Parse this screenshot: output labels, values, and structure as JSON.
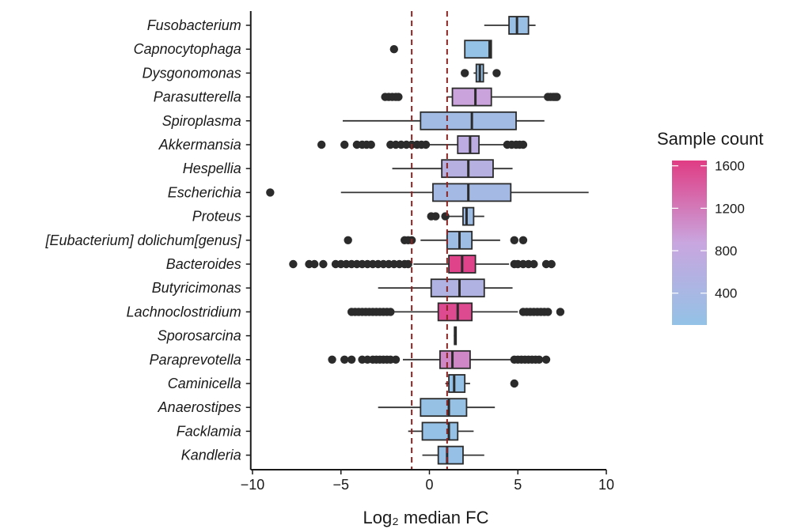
{
  "chart_data": {
    "type": "boxplot",
    "orientation": "horizontal",
    "title": "",
    "xlabel": "Log₂ median FC",
    "ylabel": "",
    "xlim": [
      -10.1,
      10
    ],
    "x_ticks": [
      -10,
      -5,
      0,
      5,
      10
    ],
    "x_tick_labels": [
      "−10",
      "−5",
      "0",
      "5",
      "10"
    ],
    "reference_lines": [
      -1,
      1
    ],
    "reference_line_color": "#8b2323",
    "grid": false,
    "legend": {
      "title": "Sample count",
      "placement": "right",
      "type": "colorbar",
      "range": [
        100,
        1650
      ],
      "ticks": [
        400,
        800,
        1200,
        1600
      ],
      "tick_labels": [
        "400",
        "800",
        "1200",
        "1600"
      ],
      "color_low": "#93c2e6",
      "color_mid": "#c9a6df",
      "color_high": "#e03c84"
    },
    "categories": [
      "Fusobacterium",
      "Capnocytophaga",
      "Dysgonomonas",
      "Parasutterella",
      "Spiroplasma",
      "Akkermansia",
      "Hespellia",
      "Escherichia",
      "Proteus",
      "[Eubacterium] dolichum[genus]",
      "Bacteroides",
      "Butyricimonas",
      "Lachnoclostridium",
      "Sporosarcina",
      "Paraprevotella",
      "Caminicella",
      "Anaerostipes",
      "Facklamia",
      "Kandleria"
    ],
    "boxes": [
      {
        "label": "Fusobacterium",
        "whisker_low": 3.1,
        "q1": 4.5,
        "median": 4.95,
        "q3": 5.6,
        "whisker_high": 6.0,
        "outliers": [],
        "sample_count": 180
      },
      {
        "label": "Capnocytophaga",
        "whisker_low": 2.0,
        "q1": 2.0,
        "median": 3.4,
        "q3": 3.5,
        "whisker_high": 3.5,
        "outliers": [
          -2.0
        ],
        "sample_count": 110
      },
      {
        "label": "Dysgonomonas",
        "whisker_low": 2.5,
        "q1": 2.65,
        "median": 2.85,
        "q3": 3.05,
        "whisker_high": 3.3,
        "outliers": [
          2.0,
          3.8
        ],
        "sample_count": 140
      },
      {
        "label": "Parasutterella",
        "whisker_low": 1.0,
        "q1": 1.3,
        "median": 2.6,
        "q3": 3.5,
        "whisker_high": 6.5,
        "outliers": [
          -2.5,
          -2.3,
          -2.1,
          -1.9,
          -1.75,
          6.7,
          6.85,
          7.0,
          7.1,
          7.2
        ],
        "sample_count": 900
      },
      {
        "label": "Spiroplasma",
        "whisker_low": -4.9,
        "q1": -0.5,
        "median": 2.4,
        "q3": 4.9,
        "whisker_high": 6.5,
        "outliers": [],
        "sample_count": 300
      },
      {
        "label": "Akkermansia",
        "whisker_low": -0.3,
        "q1": 1.6,
        "median": 2.3,
        "q3": 2.8,
        "whisker_high": 4.2,
        "outliers": [
          -6.1,
          -4.8,
          -4.1,
          -3.8,
          -3.55,
          -3.3,
          -2.2,
          -1.9,
          -1.6,
          -1.3,
          -1.0,
          -0.7,
          -0.45,
          -0.2,
          4.4,
          4.65,
          4.9,
          5.1,
          5.3
        ],
        "sample_count": 700
      },
      {
        "label": "Hespellia",
        "whisker_low": -2.1,
        "q1": 0.7,
        "median": 2.2,
        "q3": 3.6,
        "whisker_high": 4.7,
        "outliers": [],
        "sample_count": 600
      },
      {
        "label": "Escherichia",
        "whisker_low": -5.0,
        "q1": 0.2,
        "median": 2.2,
        "q3": 4.6,
        "whisker_high": 9.0,
        "outliers": [
          -9.0
        ],
        "sample_count": 350
      },
      {
        "label": "Proteus",
        "whisker_low": 0.9,
        "q1": 1.9,
        "median": 2.1,
        "q3": 2.5,
        "whisker_high": 3.1,
        "outliers": [
          0.1,
          0.35,
          0.9
        ],
        "sample_count": 250
      },
      {
        "label": "[Eubacterium] dolichum[genus]",
        "whisker_low": -0.5,
        "q1": 1.0,
        "median": 1.7,
        "q3": 2.4,
        "whisker_high": 4.0,
        "outliers": [
          -4.6,
          -1.4,
          -1.2,
          -1.0,
          4.8,
          5.3
        ],
        "sample_count": 250
      },
      {
        "label": "Bacteroides",
        "whisker_low": -0.9,
        "q1": 1.1,
        "median": 1.85,
        "q3": 2.6,
        "whisker_high": 4.5,
        "outliers": [
          -7.7,
          -6.8,
          -6.5,
          -6.0,
          -5.3,
          -5.0,
          -4.7,
          -4.4,
          -4.1,
          -3.8,
          -3.5,
          -3.2,
          -2.9,
          -2.6,
          -2.3,
          -2.0,
          -1.7,
          -1.4,
          -1.2,
          4.8,
          5.0,
          5.3,
          5.6,
          5.9,
          6.6,
          6.9
        ],
        "sample_count": 1600
      },
      {
        "label": "Butyricimonas",
        "whisker_low": -2.9,
        "q1": 0.1,
        "median": 1.7,
        "q3": 3.1,
        "whisker_high": 4.7,
        "outliers": [],
        "sample_count": 520
      },
      {
        "label": "Lachnoclostridium",
        "whisker_low": -2.2,
        "q1": 0.5,
        "median": 1.6,
        "q3": 2.4,
        "whisker_high": 5.0,
        "outliers": [
          -4.4,
          -4.2,
          -4.0,
          -3.8,
          -3.6,
          -3.4,
          -3.2,
          -3.0,
          -2.8,
          -2.6,
          -2.4,
          -2.2,
          5.3,
          5.5,
          5.7,
          5.9,
          6.1,
          6.3,
          6.5,
          6.7,
          7.4
        ],
        "sample_count": 1550
      },
      {
        "label": "Sporosarcina",
        "whisker_low": 1.38,
        "q1": 1.42,
        "median": 1.45,
        "q3": 1.48,
        "whisker_high": 1.52,
        "outliers": [],
        "sample_count": 120
      },
      {
        "label": "Paraprevotella",
        "whisker_low": -1.5,
        "q1": 0.6,
        "median": 1.3,
        "q3": 2.3,
        "whisker_high": 4.6,
        "outliers": [
          -5.5,
          -4.8,
          -4.4,
          -3.8,
          -3.5,
          -3.2,
          -3.0,
          -2.8,
          -2.6,
          -2.4,
          -2.2,
          -1.9,
          4.8,
          5.0,
          5.2,
          5.4,
          5.6,
          5.8,
          6.0,
          6.2,
          6.6
        ],
        "sample_count": 1100
      },
      {
        "label": "Caminicella",
        "whisker_low": 0.9,
        "q1": 1.1,
        "median": 1.4,
        "q3": 2.0,
        "whisker_high": 2.3,
        "outliers": [
          4.8
        ],
        "sample_count": 130
      },
      {
        "label": "Anaerostipes",
        "whisker_low": -2.9,
        "q1": -0.5,
        "median": 1.1,
        "q3": 2.1,
        "whisker_high": 3.7,
        "outliers": [],
        "sample_count": 160
      },
      {
        "label": "Facklamia",
        "whisker_low": -1.2,
        "q1": -0.4,
        "median": 1.1,
        "q3": 1.6,
        "whisker_high": 2.5,
        "outliers": [],
        "sample_count": 140
      },
      {
        "label": "Kandleria",
        "whisker_low": -0.4,
        "q1": 0.5,
        "median": 1.0,
        "q3": 1.9,
        "whisker_high": 3.1,
        "outliers": [],
        "sample_count": 150
      }
    ]
  }
}
